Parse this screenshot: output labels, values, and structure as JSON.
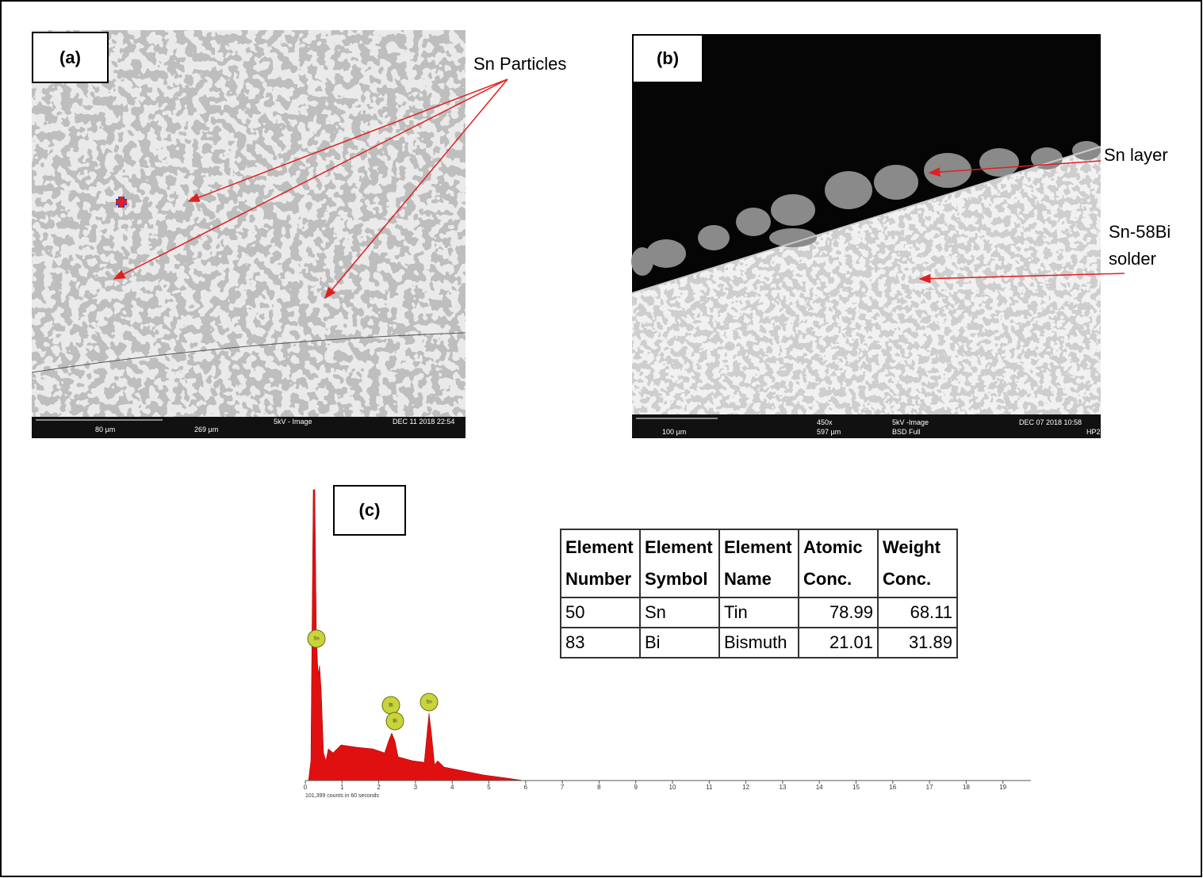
{
  "panels": {
    "a": {
      "label": "(a)",
      "annotation": "Sn Particles",
      "scale_bar": "80 µm",
      "field": "269 µm",
      "mode": "5kV - Image",
      "date": "DEC 11 2018 22:54"
    },
    "b": {
      "label": "(b)",
      "layer_annotation": "Sn layer",
      "solder_annotation": "Sn-58Bi solder",
      "scale_bar": "100 µm",
      "magnification": "450x",
      "field": "597 µm",
      "mode": "5kV -Image",
      "detector": "BSD Full",
      "date": "DEC 07 2018 10:58",
      "id": "HP2"
    },
    "c": {
      "label": "(c)",
      "spectrum": {
        "ticks": [
          0,
          1,
          2,
          3,
          4,
          5,
          6,
          7,
          8,
          9,
          10,
          11,
          12,
          13,
          14,
          15,
          16,
          17,
          18,
          19
        ],
        "counts_note": "101,399 counts in 60 seconds",
        "peak_labels": [
          "Sn",
          "Bi",
          "Bi",
          "Sn"
        ]
      },
      "table": {
        "header": [
          "Element Number",
          "Element Symbol",
          "Element Name",
          "Atomic Conc.",
          "Weight Conc."
        ],
        "rows": [
          [
            50,
            "Sn",
            "Tin",
            78.99,
            68.11
          ],
          [
            83,
            "Bi",
            "Bismuth",
            21.01,
            31.89
          ]
        ]
      }
    }
  }
}
